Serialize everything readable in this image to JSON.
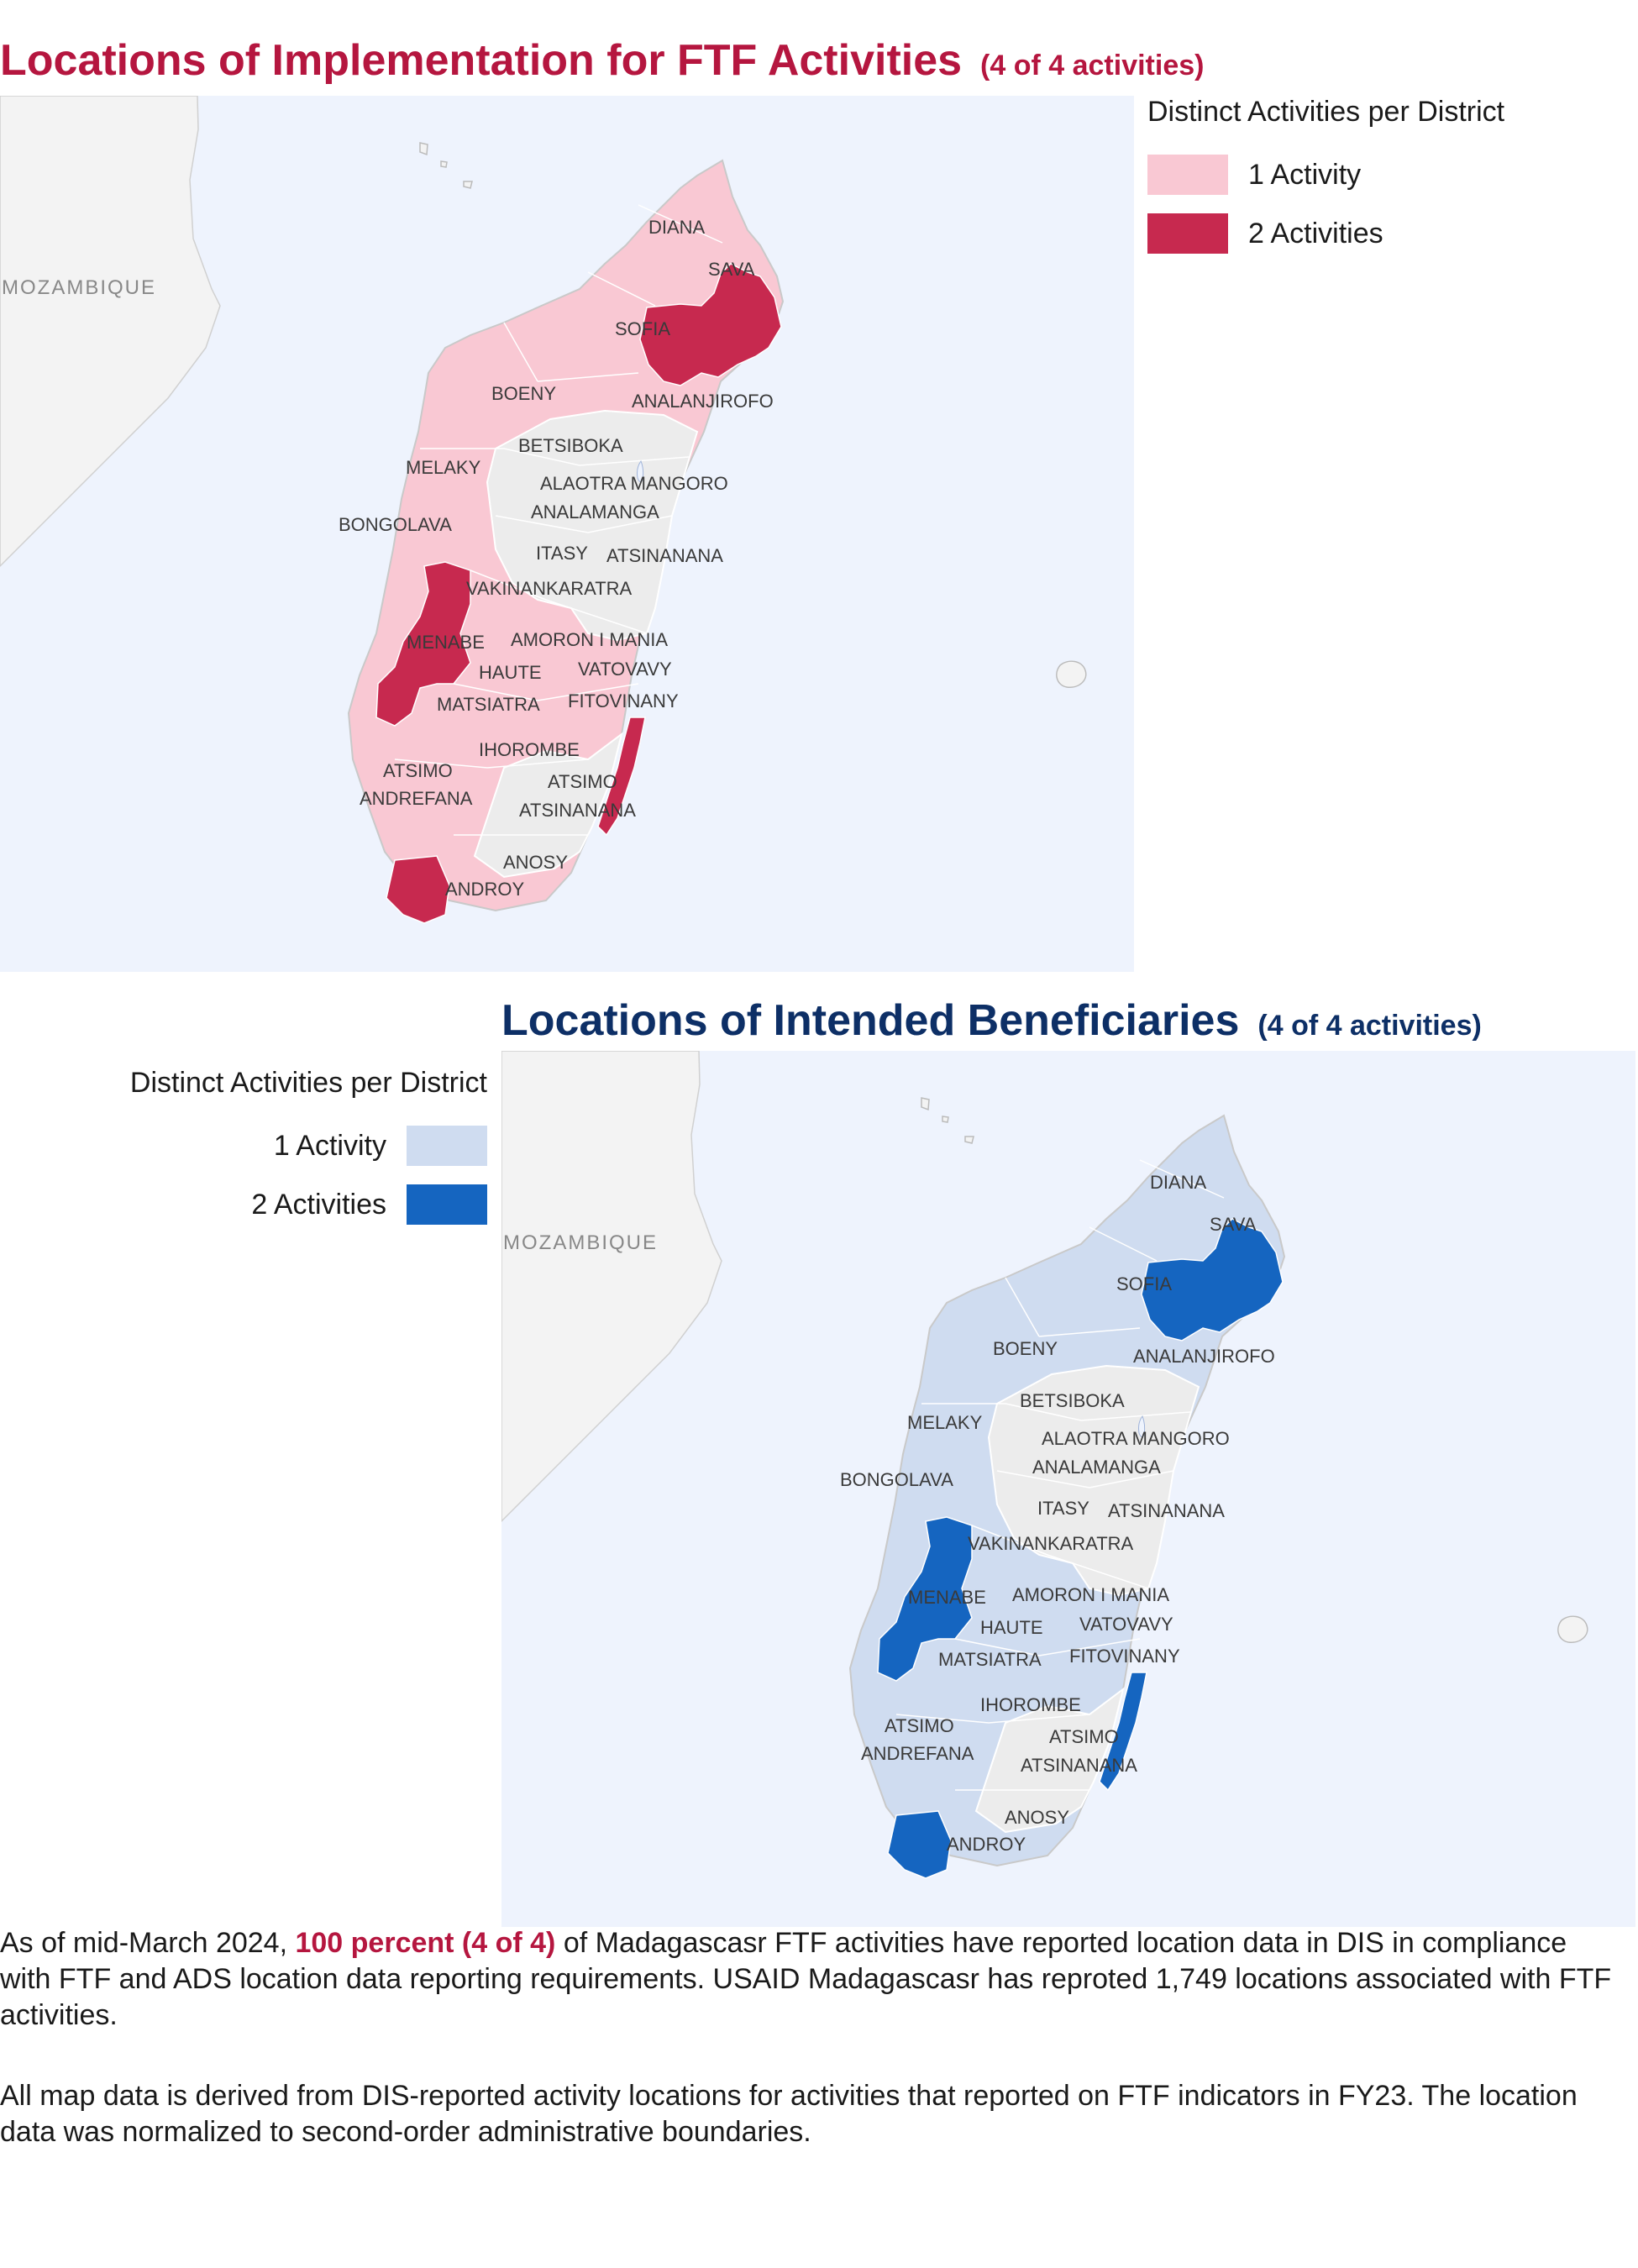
{
  "top_panel": {
    "title": "Locations of Implementation for FTF Activities",
    "subtitle": "(4 of 4 activities)",
    "legend_title": "Distinct Activities per District",
    "legend_items": [
      {
        "label": "1 Activity",
        "color": "#f9c8d3"
      },
      {
        "label": "2 Activities",
        "color": "#c7294f"
      }
    ],
    "country_label": "MOZAMBIQUE"
  },
  "bottom_panel": {
    "title": "Locations of Intended Beneficiaries",
    "subtitle": "(4 of 4 activities)",
    "legend_title": "Distinct Activities per District",
    "legend_items": [
      {
        "label": "1 Activity",
        "color": "#cfdcf0"
      },
      {
        "label": "2 Activities",
        "color": "#1565c0"
      }
    ],
    "country_label": "MOZAMBIQUE"
  },
  "map_colors": {
    "ocean_top": "#eef3fd",
    "ocean_bottom": "#eef3fd",
    "land": "#f3f3f3",
    "no_activity": "#ececec"
  },
  "regions": [
    "DIANA",
    "SAVA",
    "SOFIA",
    "ANALANJIROFO",
    "BOENY",
    "BETSIBOKA",
    "MELAKY",
    "ALAOTRA MANGORO",
    "ANALAMANGA",
    "BONGOLAVA",
    "ITASY",
    "ATSINANANA",
    "VAKINANKARATRA",
    "MENABE",
    "AMORON I MANIA",
    "HAUTE",
    "VATOVAVY",
    "MATSIATRA",
    "FITOVINANY",
    "IHOROMBE",
    "ATSIMO",
    "ANDREFANA",
    "ATSIMO",
    "ATSINANANA",
    "ANOSY",
    "ANDROY"
  ],
  "paragraph1": {
    "before": "As of mid-March 2024, ",
    "highlight": "100 percent (4 of 4)",
    "after": " of Madagascasr FTF activities have reported location data in DIS in compliance with FTF and ADS location data reporting requirements. USAID Madagascasr has reproted 1,749 locations associated with FTF activities."
  },
  "paragraph2": "All map data is derived from DIS-reported activity locations for activities that reported on FTF indicators in FY23. The location data was normalized to second-order administrative boundaries."
}
